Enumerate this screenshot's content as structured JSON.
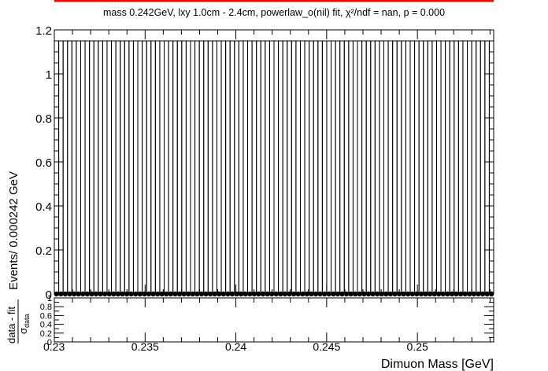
{
  "title": "mass 0.242GeV, lxy 1.0cm - 2.4cm, powerlaw_o(nil) fit, χ²/ndf = nan, p = 0.000",
  "chart_data": [
    {
      "type": "bar",
      "panel": "main",
      "xlabel": "",
      "ylabel": "Events/ 0.000242 GeV",
      "xlim": [
        0.23,
        0.2542
      ],
      "ylim": [
        0,
        1.2
      ],
      "bin_width": 0.000242,
      "n_bins": 100,
      "bin_value": 1.15,
      "data_points_y": 0,
      "fit_curve": {
        "color": "#ff0000",
        "value": "above plot range"
      },
      "yticks": [
        "0",
        "0.2",
        "0.4",
        "0.6",
        "0.8",
        "1",
        "1.2"
      ],
      "xticks": [
        "0.23",
        "0.235",
        "0.24",
        "0.245",
        "0.25"
      ],
      "grid": false,
      "legend": "none"
    },
    {
      "type": "scatter",
      "panel": "residual",
      "xlabel": "Dimuon Mass [GeV]",
      "ylabel_num": "data - fit",
      "ylabel_den": "σ",
      "ylabel_den_sub": "data",
      "xlim": [
        0.23,
        0.2542
      ],
      "ylim": [
        0,
        1
      ],
      "yticks": [
        "0",
        "0.2",
        "0.4",
        "0.6",
        "0.8",
        "1"
      ],
      "xticks": [
        "0.23",
        "0.235",
        "0.24",
        "0.245",
        "0.25"
      ]
    }
  ]
}
